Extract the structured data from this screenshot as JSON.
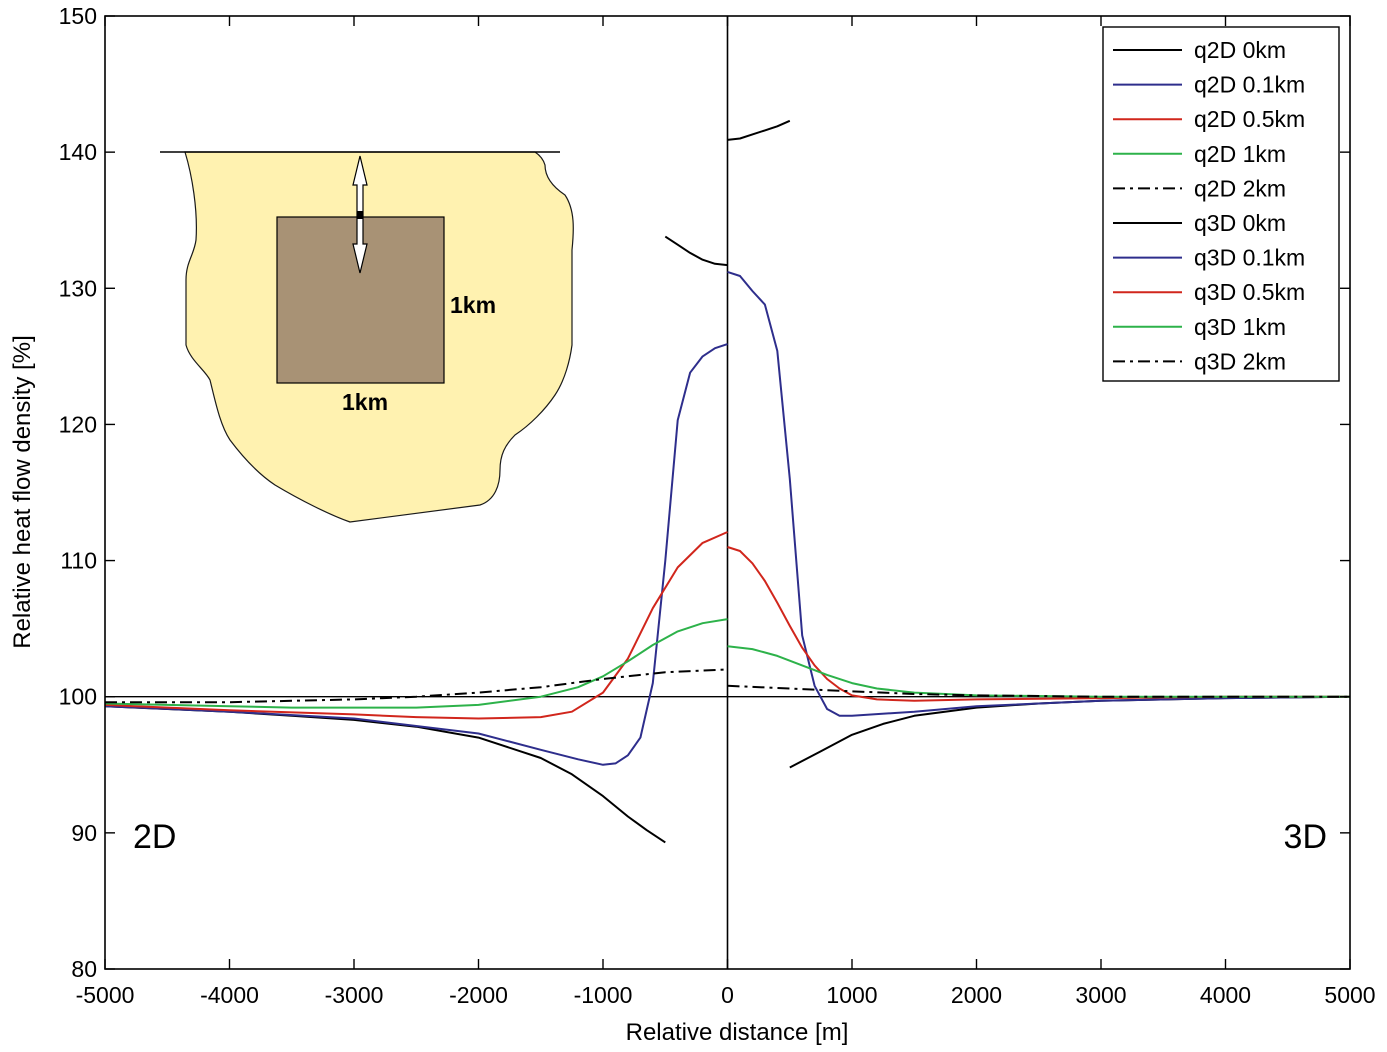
{
  "chart_data": {
    "type": "line",
    "xlabel": "Relative distance [m]",
    "ylabel": "Relative heat flow density [%]",
    "xlim": [
      -5000,
      5000
    ],
    "ylim": [
      80,
      150
    ],
    "xticks": [
      -5000,
      -4000,
      -3000,
      -2000,
      -1000,
      0,
      1000,
      2000,
      3000,
      4000,
      5000
    ],
    "yticks": [
      80,
      90,
      100,
      110,
      120,
      130,
      140,
      150
    ],
    "grid": false,
    "legend_position": "top-right",
    "panel_labels": {
      "left": "2D",
      "right": "3D"
    },
    "inset": {
      "width_label": "1km",
      "height_label": "1km"
    },
    "reference_line_y": 100,
    "divider_x": 0,
    "series": [
      {
        "name": "q2D 0km",
        "color": "#000000",
        "style": "solid",
        "x": [
          -5000,
          -4500,
          -4000,
          -3500,
          -3000,
          -2500,
          -2000,
          -1500,
          -1250,
          -1000,
          -800,
          -650,
          -500
        ],
        "y": [
          99.3,
          99.1,
          98.9,
          98.6,
          98.3,
          97.8,
          97.0,
          95.5,
          94.3,
          92.7,
          91.2,
          90.2,
          89.3
        ]
      },
      {
        "name": "q2D 0.1km",
        "color": "#2e2e8c",
        "style": "solid",
        "x": [
          -5000,
          -4000,
          -3000,
          -2000,
          -1500,
          -1200,
          -1000,
          -900,
          -800,
          -700,
          -600,
          -500,
          -400,
          -300,
          -200,
          -100,
          0
        ],
        "y": [
          99.3,
          98.9,
          98.4,
          97.3,
          96.1,
          95.4,
          95.0,
          95.1,
          95.7,
          97.0,
          101.0,
          110.0,
          120.3,
          123.8,
          125.0,
          125.6,
          125.9
        ]
      },
      {
        "name": "q2D 0.5km",
        "color": "#d1261c",
        "style": "solid",
        "x": [
          -5000,
          -4000,
          -3000,
          -2500,
          -2000,
          -1500,
          -1250,
          -1000,
          -800,
          -600,
          -400,
          -200,
          0
        ],
        "y": [
          99.4,
          99.0,
          98.7,
          98.5,
          98.4,
          98.5,
          98.9,
          100.3,
          102.8,
          106.5,
          109.5,
          111.3,
          112.1
        ]
      },
      {
        "name": "q2D 1km",
        "color": "#2db24a",
        "style": "solid",
        "x": [
          -5000,
          -4000,
          -3500,
          -3000,
          -2500,
          -2000,
          -1500,
          -1200,
          -1000,
          -800,
          -600,
          -400,
          -200,
          0
        ],
        "y": [
          99.5,
          99.3,
          99.2,
          99.2,
          99.2,
          99.4,
          100.0,
          100.7,
          101.5,
          102.6,
          103.8,
          104.8,
          105.4,
          105.7
        ]
      },
      {
        "name": "q2D 2km",
        "color": "#000000",
        "style": "dashdot",
        "x": [
          -5000,
          -4000,
          -3000,
          -2500,
          -2000,
          -1500,
          -1000,
          -500,
          0
        ],
        "y": [
          99.6,
          99.6,
          99.8,
          100.0,
          100.3,
          100.7,
          101.3,
          101.8,
          102.0
        ]
      },
      {
        "name": "q3D 0km",
        "color": "#000000",
        "style": "solid",
        "x": [
          500,
          750,
          1000,
          1250,
          1500,
          2000,
          2500,
          3000,
          4000,
          5000
        ],
        "y": [
          94.8,
          96.0,
          97.2,
          98.0,
          98.6,
          99.2,
          99.5,
          99.7,
          99.9,
          100.0
        ]
      },
      {
        "name": "q3D 0.1km",
        "color": "#2e2e8c",
        "style": "solid",
        "x": [
          0,
          100,
          200,
          300,
          400,
          500,
          600,
          700,
          800,
          900,
          1000,
          1500,
          2000,
          3000,
          4000,
          5000
        ],
        "y": [
          131.2,
          130.9,
          129.8,
          128.8,
          125.4,
          116.0,
          104.5,
          100.8,
          99.1,
          98.6,
          98.6,
          98.9,
          99.3,
          99.7,
          99.9,
          100.0
        ]
      },
      {
        "name": "q3D 0.5km",
        "color": "#d1261c",
        "style": "solid",
        "x": [
          0,
          100,
          200,
          300,
          400,
          500,
          600,
          700,
          800,
          900,
          1000,
          1200,
          1500,
          2000,
          3000,
          4000,
          5000
        ],
        "y": [
          111.0,
          110.7,
          109.8,
          108.5,
          106.9,
          105.2,
          103.6,
          102.3,
          101.3,
          100.6,
          100.1,
          99.8,
          99.7,
          99.8,
          99.9,
          100.0,
          100.0
        ]
      },
      {
        "name": "q3D 1km",
        "color": "#2db24a",
        "style": "solid",
        "x": [
          0,
          200,
          400,
          600,
          800,
          1000,
          1200,
          1500,
          2000,
          3000,
          4000,
          5000
        ],
        "y": [
          103.7,
          103.5,
          103.0,
          102.3,
          101.6,
          101.0,
          100.6,
          100.3,
          100.1,
          100.0,
          100.0,
          100.0
        ]
      },
      {
        "name": "q3D 2km",
        "color": "#000000",
        "style": "dashdot",
        "x": [
          0,
          500,
          1000,
          1500,
          2000,
          3000,
          5000
        ],
        "y": [
          100.8,
          100.6,
          100.4,
          100.2,
          100.1,
          100.0,
          100.0
        ]
      },
      {
        "name": "q2D 0km (near-surface, left)",
        "legend": false,
        "color": "#000000",
        "style": "solid",
        "x": [
          -500,
          -400,
          -300,
          -200,
          -100,
          0
        ],
        "y": [
          133.8,
          133.2,
          132.6,
          132.1,
          131.8,
          131.7
        ]
      },
      {
        "name": "q3D 0km (near-surface, right)",
        "legend": false,
        "color": "#000000",
        "style": "solid",
        "x": [
          0,
          100,
          200,
          300,
          400,
          500
        ],
        "y": [
          140.9,
          141.0,
          141.3,
          141.6,
          141.9,
          142.3
        ]
      }
    ]
  }
}
